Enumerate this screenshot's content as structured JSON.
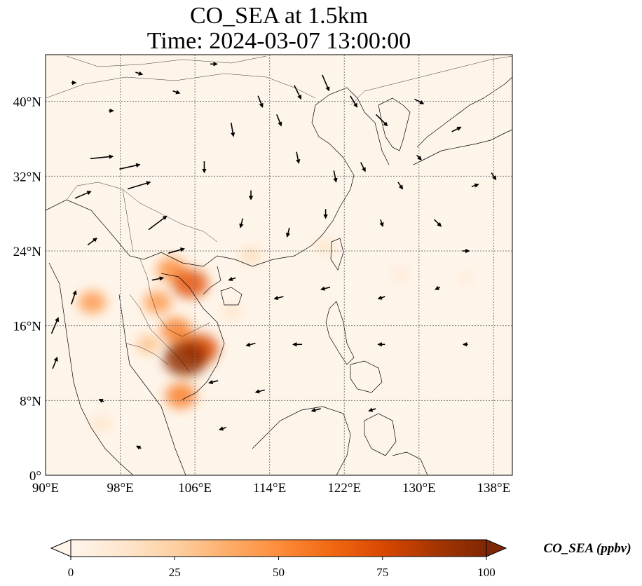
{
  "title": {
    "line1": "CO_SEA at 1.5km",
    "line2": "Time: 2024-03-07 13:00:00"
  },
  "map": {
    "extent": {
      "lon_min": 90,
      "lon_max": 140,
      "lat_min": 0,
      "lat_max": 45
    },
    "lon_ticks": [
      {
        "value": 90,
        "label": "90°E"
      },
      {
        "value": 98,
        "label": "98°E"
      },
      {
        "value": 106,
        "label": "106°E"
      },
      {
        "value": 114,
        "label": "114°E"
      },
      {
        "value": 122,
        "label": "122°E"
      },
      {
        "value": 130,
        "label": "130°E"
      },
      {
        "value": 138,
        "label": "138°E"
      }
    ],
    "lat_ticks": [
      {
        "value": 0,
        "label": "0°"
      },
      {
        "value": 8,
        "label": "8°N"
      },
      {
        "value": 16,
        "label": "16°N"
      },
      {
        "value": 24,
        "label": "24°N"
      },
      {
        "value": 32,
        "label": "32°N"
      },
      {
        "value": 40,
        "label": "40°N"
      }
    ],
    "gridlines": true
  },
  "colorbar": {
    "label": "CO_SEA (ppbv)",
    "min": 0,
    "max": 100,
    "ticks": [
      {
        "value": 0,
        "label": "0"
      },
      {
        "value": 25,
        "label": "25"
      },
      {
        "value": 50,
        "label": "50"
      },
      {
        "value": 75,
        "label": "75"
      },
      {
        "value": 100,
        "label": "100"
      }
    ],
    "colormap": [
      "#fff5eb",
      "#fee6ce",
      "#fdd0a2",
      "#fdae6b",
      "#fd8d3c",
      "#f16913",
      "#d94801",
      "#a63603",
      "#7f2704"
    ],
    "extend": "both"
  },
  "chart_data": {
    "type": "heatmap",
    "variable": "CO_SEA",
    "units": "ppbv",
    "plumes": [
      {
        "lon": 105.0,
        "lat": 12.5,
        "value": 95
      },
      {
        "lon": 106.5,
        "lat": 13.5,
        "value": 75
      },
      {
        "lon": 104.0,
        "lat": 15.5,
        "value": 55
      },
      {
        "lon": 105.5,
        "lat": 20.5,
        "value": 70
      },
      {
        "lon": 103.5,
        "lat": 22.0,
        "value": 50
      },
      {
        "lon": 102.0,
        "lat": 18.5,
        "value": 45
      },
      {
        "lon": 95.0,
        "lat": 18.5,
        "value": 45
      },
      {
        "lon": 104.5,
        "lat": 8.5,
        "value": 55
      },
      {
        "lon": 101.0,
        "lat": 14.0,
        "value": 30
      },
      {
        "lon": 112.0,
        "lat": 23.5,
        "value": 20
      },
      {
        "lon": 120.0,
        "lat": 24.5,
        "value": 15
      },
      {
        "lon": 128.0,
        "lat": 21.5,
        "value": 10
      },
      {
        "lon": 135.0,
        "lat": 21.0,
        "value": 8
      },
      {
        "lon": 96.0,
        "lat": 5.5,
        "value": 15
      },
      {
        "lon": 110.0,
        "lat": 17.5,
        "value": 15
      }
    ],
    "wind_vectors": [
      {
        "lon": 100,
        "lat": 31,
        "u": 10,
        "v": 3
      },
      {
        "lon": 102,
        "lat": 27,
        "u": 8,
        "v": 6
      },
      {
        "lon": 99,
        "lat": 33,
        "u": 9,
        "v": 2
      },
      {
        "lon": 96,
        "lat": 34,
        "u": 10,
        "v": 1
      },
      {
        "lon": 94,
        "lat": 30,
        "u": 7,
        "v": 3
      },
      {
        "lon": 104,
        "lat": 24,
        "u": 7,
        "v": 2
      },
      {
        "lon": 102,
        "lat": 21,
        "u": 5,
        "v": 1
      },
      {
        "lon": 91,
        "lat": 16,
        "u": 3,
        "v": 7
      },
      {
        "lon": 91,
        "lat": 12,
        "u": 2,
        "v": 5
      },
      {
        "lon": 93,
        "lat": 19,
        "u": 2,
        "v": 6
      },
      {
        "lon": 107,
        "lat": 33,
        "u": 0,
        "v": -5
      },
      {
        "lon": 110,
        "lat": 37,
        "u": 1,
        "v": -6
      },
      {
        "lon": 113,
        "lat": 40,
        "u": 2,
        "v": -5
      },
      {
        "lon": 115,
        "lat": 38,
        "u": 2,
        "v": -5
      },
      {
        "lon": 117,
        "lat": 41,
        "u": 3,
        "v": -6
      },
      {
        "lon": 120,
        "lat": 42,
        "u": 3,
        "v": -7
      },
      {
        "lon": 123,
        "lat": 40,
        "u": 3,
        "v": -5
      },
      {
        "lon": 126,
        "lat": 38,
        "u": 5,
        "v": -5
      },
      {
        "lon": 130,
        "lat": 40,
        "u": 4,
        "v": -2
      },
      {
        "lon": 134,
        "lat": 37,
        "u": 4,
        "v": 2
      },
      {
        "lon": 117,
        "lat": 34,
        "u": 1,
        "v": -5
      },
      {
        "lon": 121,
        "lat": 32,
        "u": 1,
        "v": -5
      },
      {
        "lon": 124,
        "lat": 33,
        "u": 2,
        "v": -4
      },
      {
        "lon": 128,
        "lat": 31,
        "u": 2,
        "v": -3
      },
      {
        "lon": 112,
        "lat": 30,
        "u": 0,
        "v": -4
      },
      {
        "lon": 116,
        "lat": 26,
        "u": -1,
        "v": -4
      },
      {
        "lon": 120,
        "lat": 28,
        "u": 0,
        "v": -4
      },
      {
        "lon": 126,
        "lat": 27,
        "u": 1,
        "v": -3
      },
      {
        "lon": 132,
        "lat": 27,
        "u": 3,
        "v": -3
      },
      {
        "lon": 136,
        "lat": 31,
        "u": 3,
        "v": 1
      },
      {
        "lon": 138,
        "lat": 32,
        "u": 2,
        "v": -3
      },
      {
        "lon": 110,
        "lat": 21,
        "u": -3,
        "v": -1
      },
      {
        "lon": 115,
        "lat": 19,
        "u": -4,
        "v": -1
      },
      {
        "lon": 120,
        "lat": 20,
        "u": -4,
        "v": -1
      },
      {
        "lon": 126,
        "lat": 19,
        "u": -3,
        "v": -1
      },
      {
        "lon": 132,
        "lat": 20,
        "u": -2,
        "v": -1
      },
      {
        "lon": 112,
        "lat": 14,
        "u": -4,
        "v": -1
      },
      {
        "lon": 117,
        "lat": 14,
        "u": -4,
        "v": 0
      },
      {
        "lon": 126,
        "lat": 14,
        "u": -3,
        "v": 0
      },
      {
        "lon": 108,
        "lat": 10,
        "u": -4,
        "v": -1
      },
      {
        "lon": 113,
        "lat": 9,
        "u": -4,
        "v": -1
      },
      {
        "lon": 119,
        "lat": 7,
        "u": -4,
        "v": -1
      },
      {
        "lon": 125,
        "lat": 7,
        "u": -3,
        "v": -1
      },
      {
        "lon": 109,
        "lat": 5,
        "u": -3,
        "v": -1
      },
      {
        "lon": 96,
        "lat": 8,
        "u": -2,
        "v": 1
      },
      {
        "lon": 100,
        "lat": 3,
        "u": -2,
        "v": 1
      },
      {
        "lon": 135,
        "lat": 14,
        "u": -2,
        "v": 0
      },
      {
        "lon": 135,
        "lat": 24,
        "u": 3,
        "v": 0
      },
      {
        "lon": 95,
        "lat": 25,
        "u": 4,
        "v": 3
      },
      {
        "lon": 97,
        "lat": 39,
        "u": 2,
        "v": 0
      },
      {
        "lon": 104,
        "lat": 41,
        "u": 3,
        "v": -1
      },
      {
        "lon": 108,
        "lat": 44,
        "u": 3,
        "v": 0
      },
      {
        "lon": 100,
        "lat": 43,
        "u": 3,
        "v": -1
      },
      {
        "lon": 93,
        "lat": 42,
        "u": 2,
        "v": 0
      },
      {
        "lon": 111,
        "lat": 27,
        "u": -1,
        "v": -4
      },
      {
        "lon": 130,
        "lat": 34,
        "u": 2,
        "v": -2
      }
    ]
  }
}
